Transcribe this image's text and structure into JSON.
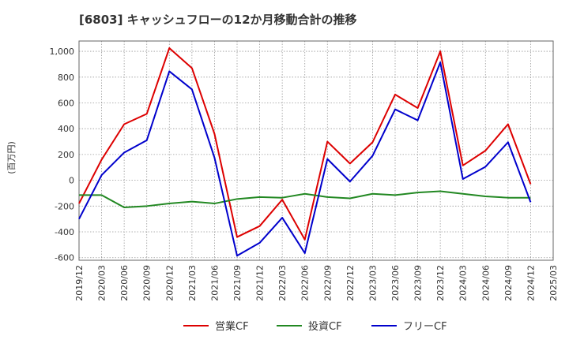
{
  "chart_data": {
    "type": "line",
    "title": "[6803]  キャッシュフローの12か月移動合計の推移",
    "ylabel": "(百万円)",
    "xlabel": "",
    "ylim": [
      -620,
      1080
    ],
    "yticks": [
      -600,
      -400,
      -200,
      0,
      200,
      400,
      600,
      800,
      1000
    ],
    "ytick_labels": [
      "-600",
      "-400",
      "-200",
      "0",
      "200",
      "400",
      "600",
      "800",
      "1,000"
    ],
    "xticks": [
      "2019/12",
      "2020/03",
      "2020/06",
      "2020/09",
      "2020/12",
      "2021/03",
      "2021/06",
      "2021/09",
      "2021/12",
      "2022/03",
      "2022/06",
      "2022/09",
      "2022/12",
      "2023/03",
      "2023/06",
      "2023/09",
      "2023/12",
      "2024/03",
      "2024/06",
      "2024/09",
      "2024/12",
      "2025/03"
    ],
    "grid": true,
    "legend_position": "bottom",
    "series": [
      {
        "name": "営業CF",
        "color": "#dd0000",
        "values": [
          -180,
          160,
          435,
          515,
          1025,
          870,
          360,
          -440,
          -355,
          -150,
          -460,
          300,
          130,
          295,
          665,
          560,
          1000,
          115,
          230,
          435,
          -30
        ]
      },
      {
        "name": "投資CF",
        "color": "#228822",
        "values": [
          -115,
          -115,
          -210,
          -200,
          -180,
          -165,
          -180,
          -145,
          -130,
          -135,
          -105,
          -130,
          -140,
          -105,
          -115,
          -95,
          -85,
          -105,
          -125,
          -135,
          -135
        ]
      },
      {
        "name": "フリーCF",
        "color": "#0000cc",
        "values": [
          -300,
          40,
          215,
          310,
          845,
          705,
          175,
          -585,
          -485,
          -290,
          -565,
          165,
          -10,
          190,
          550,
          465,
          915,
          10,
          105,
          295,
          -170
        ]
      }
    ]
  }
}
